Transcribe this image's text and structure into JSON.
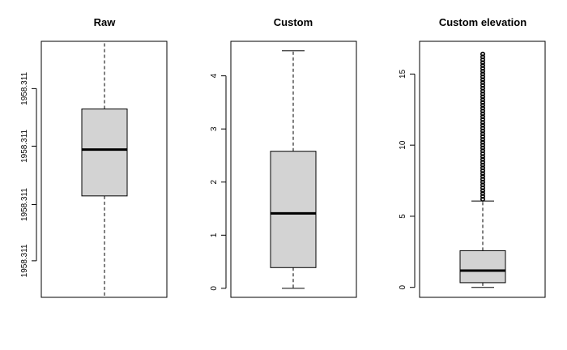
{
  "chart_data": [
    {
      "type": "boxplot",
      "title": "Raw",
      "xlabel": "",
      "ylabel": "",
      "ylim": [
        0,
        1
      ],
      "y_ticks": [
        {
          "value": 0.1428,
          "label": "1958.311"
        },
        {
          "value": 0.3622,
          "label": "1958.311"
        },
        {
          "value": 0.5905,
          "label": "1958.311"
        },
        {
          "value": 0.8153,
          "label": "1958.311"
        }
      ],
      "stats": {
        "min": 0.0,
        "q1": 0.3961,
        "median": 0.5771,
        "q3": 0.7359,
        "whisker_high": 1.0
      },
      "outliers": [],
      "box_fill": "#d3d3d3"
    },
    {
      "type": "boxplot",
      "title": "Custom",
      "xlabel": "",
      "ylabel": "",
      "ylim": [
        -0.17,
        4.65
      ],
      "y_ticks": [
        {
          "value": 0,
          "label": "0"
        },
        {
          "value": 1,
          "label": "1"
        },
        {
          "value": 2,
          "label": "2"
        },
        {
          "value": 3,
          "label": "3"
        },
        {
          "value": 4,
          "label": "4"
        }
      ],
      "stats": {
        "min": 0.0,
        "q1": 0.39,
        "median": 1.41,
        "q3": 2.58,
        "whisker_high": 4.47
      },
      "outliers": [],
      "box_fill": "#d3d3d3"
    },
    {
      "type": "boxplot",
      "title": "Custom elevation",
      "xlabel": "",
      "ylabel": "",
      "ylim": [
        -0.7,
        17.3
      ],
      "y_ticks": [
        {
          "value": 0,
          "label": "0"
        },
        {
          "value": 5,
          "label": "5"
        },
        {
          "value": 10,
          "label": "10"
        },
        {
          "value": 15,
          "label": "15"
        }
      ],
      "stats": {
        "min": 0.0,
        "q1": 0.33,
        "median": 1.18,
        "q3": 2.58,
        "whisker_high": 6.07
      },
      "outliers": [
        6.2,
        6.4,
        6.6,
        6.8,
        7.0,
        7.2,
        7.4,
        7.6,
        7.8,
        8.0,
        8.2,
        8.4,
        8.6,
        8.8,
        9.0,
        9.2,
        9.4,
        9.6,
        9.8,
        10.0,
        10.2,
        10.4,
        10.6,
        10.8,
        11.0,
        11.2,
        11.4,
        11.6,
        11.8,
        12.0,
        12.2,
        12.4,
        12.6,
        12.8,
        13.0,
        13.2,
        13.4,
        13.6,
        13.8,
        14.0,
        14.2,
        14.4,
        14.6,
        14.8,
        15.0,
        15.2,
        15.4,
        15.6,
        15.8,
        16.0,
        16.2,
        16.4
      ],
      "box_fill": "#d3d3d3"
    }
  ]
}
